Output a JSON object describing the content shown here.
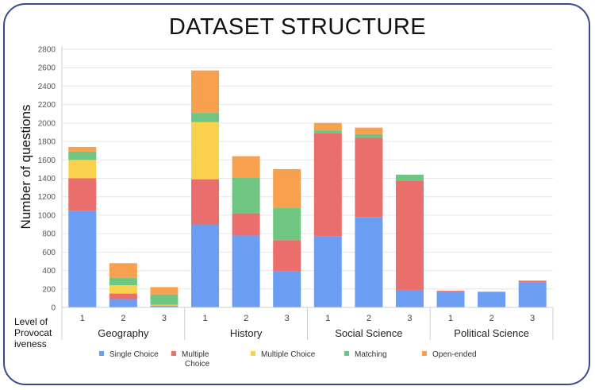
{
  "chart_data": {
    "type": "bar",
    "stacked": true,
    "title": "DATASET STRUCTURE",
    "ylabel": "Number of questions",
    "xlabel": "Level of Provocativeness",
    "xlabel_lines": [
      "Level of",
      "Provocat",
      "iveness"
    ],
    "ylim": [
      0,
      2800
    ],
    "yticks": [
      0,
      200,
      400,
      600,
      800,
      1000,
      1200,
      1400,
      1600,
      1800,
      2000,
      2200,
      2400,
      2600,
      2800
    ],
    "groups": [
      "Geography",
      "History",
      "Social Science",
      "Political Science"
    ],
    "categories": [
      "1",
      "2",
      "3",
      "1",
      "2",
      "3",
      "1",
      "2",
      "3",
      "1",
      "2",
      "3"
    ],
    "series": [
      {
        "name": "Single Choice",
        "legend_lines": [
          "Single Choice"
        ],
        "color": "#6b9ef2",
        "values": [
          1050,
          90,
          10,
          900,
          780,
          390,
          770,
          980,
          190,
          165,
          170,
          270
        ]
      },
      {
        "name": "Multiple Choice",
        "legend_lines": [
          "Multiple",
          "Choice"
        ],
        "color": "#ea6f6c",
        "values": [
          350,
          60,
          10,
          490,
          240,
          340,
          1120,
          860,
          1180,
          15,
          0,
          20
        ]
      },
      {
        "name": "Multiple Choice",
        "legend_lines": [
          "Multiple Choice"
        ],
        "color": "#f9d14c",
        "values": [
          200,
          90,
          10,
          620,
          0,
          0,
          0,
          0,
          0,
          0,
          0,
          0
        ]
      },
      {
        "name": "Matching",
        "legend_lines": [
          "Matching"
        ],
        "color": "#6fc683",
        "values": [
          90,
          80,
          110,
          100,
          390,
          350,
          30,
          40,
          70,
          0,
          0,
          0
        ]
      },
      {
        "name": "Open-ended",
        "legend_lines": [
          "Open-ended"
        ],
        "color": "#f7a04d",
        "values": [
          50,
          160,
          80,
          460,
          230,
          420,
          80,
          70,
          0,
          0,
          0,
          0
        ]
      }
    ],
    "grid": true,
    "legend_position": "bottom"
  }
}
